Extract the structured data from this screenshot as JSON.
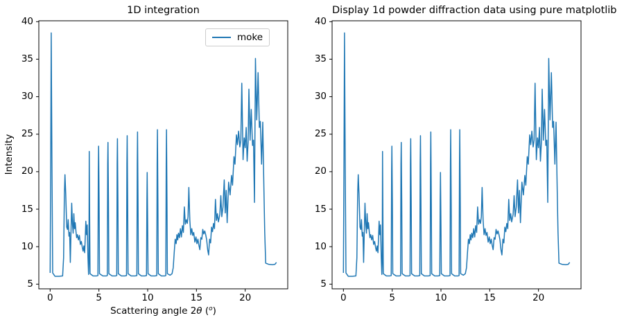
{
  "figure": {
    "background": "#ffffff",
    "line_color": "#1f77b4",
    "text_color": "#000000",
    "spine_color": "#000000"
  },
  "chart_data": {
    "type": "line",
    "grid": false,
    "xlim": [
      -1.16,
      24.36
    ],
    "ylim": [
      4.38,
      40.12
    ],
    "xticks": [
      0,
      5,
      10,
      15,
      20
    ],
    "yticks": [
      5,
      10,
      15,
      20,
      25,
      30,
      35,
      40
    ],
    "subplots": [
      {
        "title": "1D integration",
        "ylabel": "Intensity",
        "xlabel": "Scattering angle 2θ (°)",
        "xlabel_parts": {
          "prefix": "Scattering angle 2",
          "theta": "θ",
          "unit_open": " (",
          "unit_sup": "o",
          "unit_close": ")"
        },
        "legend": [
          "moke"
        ],
        "legend_position": "upper right"
      },
      {
        "title": "Display 1d powder diffraction data using pure matplotlib",
        "ylabel": "",
        "xlabel": "",
        "legend": null
      }
    ],
    "shared_series": {
      "name": "moke",
      "color": "#1f77b4",
      "points": [
        [
          0,
          6.5
        ],
        [
          0.06,
          22
        ],
        [
          0.11,
          38.5
        ],
        [
          0.18,
          22
        ],
        [
          0.26,
          6.5
        ],
        [
          0.5,
          6.05
        ],
        [
          0.9,
          6.05
        ],
        [
          1.28,
          6.1
        ],
        [
          1.38,
          8.5
        ],
        [
          1.46,
          17
        ],
        [
          1.52,
          19.6
        ],
        [
          1.6,
          17
        ],
        [
          1.7,
          12.6
        ],
        [
          1.78,
          12.3
        ],
        [
          1.85,
          13.6
        ],
        [
          1.93,
          11.4
        ],
        [
          2,
          11.9
        ],
        [
          2.07,
          7.9
        ],
        [
          2.14,
          12
        ],
        [
          2.21,
          15.8
        ],
        [
          2.29,
          13
        ],
        [
          2.36,
          11.8
        ],
        [
          2.43,
          14.4
        ],
        [
          2.5,
          12.4
        ],
        [
          2.57,
          13.2
        ],
        [
          2.65,
          12
        ],
        [
          2.72,
          11.2
        ],
        [
          2.8,
          11.6
        ],
        [
          2.9,
          10.9
        ],
        [
          3,
          11.5
        ],
        [
          3.1,
          10.3
        ],
        [
          3.2,
          10.7
        ],
        [
          3.3,
          9.9
        ],
        [
          3.38,
          9.4
        ],
        [
          3.46,
          10.1
        ],
        [
          3.54,
          9.2
        ],
        [
          3.6,
          11.2
        ],
        [
          3.66,
          13.4
        ],
        [
          3.73,
          11.6
        ],
        [
          3.8,
          12.9
        ],
        [
          3.88,
          8.5
        ],
        [
          3.94,
          6.3
        ],
        [
          3.98,
          8
        ],
        [
          4.01,
          22.7
        ],
        [
          4.05,
          14
        ],
        [
          4.09,
          6.4
        ],
        [
          4.4,
          6.1
        ],
        [
          4.75,
          6.1
        ],
        [
          4.9,
          6.15
        ],
        [
          4.94,
          20
        ],
        [
          4.97,
          23.4
        ],
        [
          5.02,
          16
        ],
        [
          5.06,
          6.4
        ],
        [
          5.4,
          6.1
        ],
        [
          5.75,
          6.1
        ],
        [
          5.86,
          6.15
        ],
        [
          5.9,
          21
        ],
        [
          5.93,
          23.9
        ],
        [
          5.98,
          16
        ],
        [
          6.02,
          6.4
        ],
        [
          6.35,
          6.1
        ],
        [
          6.7,
          6.1
        ],
        [
          6.83,
          6.15
        ],
        [
          6.87,
          21
        ],
        [
          6.9,
          24.4
        ],
        [
          6.95,
          16
        ],
        [
          6.99,
          6.4
        ],
        [
          7.3,
          6.1
        ],
        [
          7.65,
          6.1
        ],
        [
          7.83,
          6.15
        ],
        [
          7.87,
          21
        ],
        [
          7.9,
          24.8
        ],
        [
          7.95,
          16
        ],
        [
          7.99,
          6.4
        ],
        [
          8.3,
          6.1
        ],
        [
          8.7,
          6.1
        ],
        [
          8.89,
          6.15
        ],
        [
          8.93,
          21
        ],
        [
          8.96,
          25.3
        ],
        [
          9.01,
          16
        ],
        [
          9.05,
          6.4
        ],
        [
          9.35,
          6.1
        ],
        [
          9.7,
          6.1
        ],
        [
          9.88,
          6.15
        ],
        [
          9.92,
          16
        ],
        [
          9.95,
          19.9
        ],
        [
          10,
          13
        ],
        [
          10.04,
          6.4
        ],
        [
          10.35,
          6.1
        ],
        [
          10.75,
          6.1
        ],
        [
          10.93,
          6.15
        ],
        [
          10.97,
          21
        ],
        [
          11,
          25.6
        ],
        [
          11.05,
          16
        ],
        [
          11.09,
          6.4
        ],
        [
          11.4,
          6.1
        ],
        [
          11.75,
          6.1
        ],
        [
          11.86,
          6.15
        ],
        [
          11.9,
          21
        ],
        [
          11.93,
          25.6
        ],
        [
          11.98,
          16
        ],
        [
          12.02,
          6.4
        ],
        [
          12.3,
          6.2
        ],
        [
          12.5,
          6.4
        ],
        [
          12.62,
          7.2
        ],
        [
          12.72,
          9.2
        ],
        [
          12.82,
          11
        ],
        [
          12.92,
          10.4
        ],
        [
          13,
          11.6
        ],
        [
          13.08,
          10.9
        ],
        [
          13.16,
          11.8
        ],
        [
          13.26,
          11.2
        ],
        [
          13.36,
          12.4
        ],
        [
          13.46,
          11.3
        ],
        [
          13.56,
          12.8
        ],
        [
          13.66,
          11.9
        ],
        [
          13.76,
          15.3
        ],
        [
          13.86,
          13
        ],
        [
          13.96,
          13.6
        ],
        [
          14.06,
          13.1
        ],
        [
          14.14,
          14
        ],
        [
          14.22,
          17.9
        ],
        [
          14.32,
          13.6
        ],
        [
          14.42,
          11.6
        ],
        [
          14.52,
          12.4
        ],
        [
          14.62,
          11.5
        ],
        [
          14.72,
          11.9
        ],
        [
          14.84,
          10.6
        ],
        [
          14.95,
          11.3
        ],
        [
          15.05,
          10.4
        ],
        [
          15.15,
          11
        ],
        [
          15.25,
          10.2
        ],
        [
          15.35,
          9.6
        ],
        [
          15.45,
          11.2
        ],
        [
          15.55,
          11
        ],
        [
          15.65,
          12.3
        ],
        [
          15.75,
          11.7
        ],
        [
          15.85,
          12.1
        ],
        [
          15.95,
          11.6
        ],
        [
          16.05,
          10.9
        ],
        [
          16.15,
          9.6
        ],
        [
          16.25,
          8.9
        ],
        [
          16.35,
          11
        ],
        [
          16.45,
          10.5
        ],
        [
          16.55,
          12.6
        ],
        [
          16.65,
          12
        ],
        [
          16.75,
          13.1
        ],
        [
          16.85,
          12.4
        ],
        [
          16.95,
          16.3
        ],
        [
          17.05,
          13.5
        ],
        [
          17.15,
          14.4
        ],
        [
          17.25,
          13.3
        ],
        [
          17.4,
          14.3
        ],
        [
          17.5,
          16.8
        ],
        [
          17.6,
          14
        ],
        [
          17.72,
          15.3
        ],
        [
          17.85,
          18.9
        ],
        [
          17.95,
          14.5
        ],
        [
          18.05,
          17.5
        ],
        [
          18.15,
          13.2
        ],
        [
          18.3,
          18.6
        ],
        [
          18.45,
          16.9
        ],
        [
          18.6,
          19.5
        ],
        [
          18.7,
          18.2
        ],
        [
          18.85,
          22
        ],
        [
          18.95,
          21
        ],
        [
          19.1,
          24.9
        ],
        [
          19.2,
          23.6
        ],
        [
          19.32,
          25.4
        ],
        [
          19.45,
          23.3
        ],
        [
          19.55,
          24.2
        ],
        [
          19.65,
          31.8
        ],
        [
          19.78,
          21.6
        ],
        [
          19.9,
          24.5
        ],
        [
          20,
          23.2
        ],
        [
          20.1,
          25.9
        ],
        [
          20.2,
          21.4
        ],
        [
          20.3,
          24
        ],
        [
          20.38,
          31
        ],
        [
          20.5,
          24.2
        ],
        [
          20.62,
          28.3
        ],
        [
          20.75,
          23.5
        ],
        [
          20.85,
          24.2
        ],
        [
          20.95,
          15.9
        ],
        [
          21.05,
          35.1
        ],
        [
          21.18,
          26.9
        ],
        [
          21.32,
          33.2
        ],
        [
          21.45,
          25.9
        ],
        [
          21.55,
          26.7
        ],
        [
          21.68,
          21
        ],
        [
          21.8,
          26.6
        ],
        [
          21.92,
          17.5
        ],
        [
          22,
          12
        ],
        [
          22.1,
          7.8
        ],
        [
          22.4,
          7.65
        ],
        [
          22.8,
          7.6
        ],
        [
          23.05,
          7.65
        ],
        [
          23.2,
          7.9
        ]
      ]
    }
  }
}
